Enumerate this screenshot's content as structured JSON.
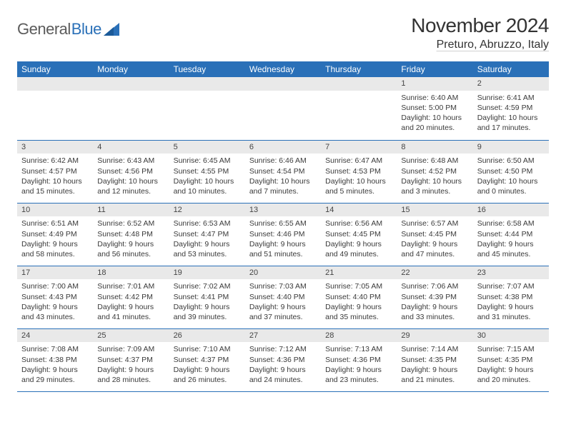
{
  "logo": {
    "text1": "General",
    "text2": "Blue"
  },
  "title": "November 2024",
  "location": "Preturo, Abruzzo, Italy",
  "day_headers": [
    "Sunday",
    "Monday",
    "Tuesday",
    "Wednesday",
    "Thursday",
    "Friday",
    "Saturday"
  ],
  "colors": {
    "header_bg": "#2a70b8",
    "header_text": "#ffffff",
    "daynum_bg": "#e9e9e9",
    "border": "#2a70b8",
    "body_text": "#3a3a3a",
    "logo_gray": "#5b5b5b",
    "logo_blue": "#2a70b8"
  },
  "weeks": [
    [
      {
        "blank": true
      },
      {
        "blank": true
      },
      {
        "blank": true
      },
      {
        "blank": true
      },
      {
        "blank": true
      },
      {
        "n": "1",
        "sunrise": "Sunrise: 6:40 AM",
        "sunset": "Sunset: 5:00 PM",
        "dl1": "Daylight: 10 hours",
        "dl2": "and 20 minutes."
      },
      {
        "n": "2",
        "sunrise": "Sunrise: 6:41 AM",
        "sunset": "Sunset: 4:59 PM",
        "dl1": "Daylight: 10 hours",
        "dl2": "and 17 minutes."
      }
    ],
    [
      {
        "n": "3",
        "sunrise": "Sunrise: 6:42 AM",
        "sunset": "Sunset: 4:57 PM",
        "dl1": "Daylight: 10 hours",
        "dl2": "and 15 minutes."
      },
      {
        "n": "4",
        "sunrise": "Sunrise: 6:43 AM",
        "sunset": "Sunset: 4:56 PM",
        "dl1": "Daylight: 10 hours",
        "dl2": "and 12 minutes."
      },
      {
        "n": "5",
        "sunrise": "Sunrise: 6:45 AM",
        "sunset": "Sunset: 4:55 PM",
        "dl1": "Daylight: 10 hours",
        "dl2": "and 10 minutes."
      },
      {
        "n": "6",
        "sunrise": "Sunrise: 6:46 AM",
        "sunset": "Sunset: 4:54 PM",
        "dl1": "Daylight: 10 hours",
        "dl2": "and 7 minutes."
      },
      {
        "n": "7",
        "sunrise": "Sunrise: 6:47 AM",
        "sunset": "Sunset: 4:53 PM",
        "dl1": "Daylight: 10 hours",
        "dl2": "and 5 minutes."
      },
      {
        "n": "8",
        "sunrise": "Sunrise: 6:48 AM",
        "sunset": "Sunset: 4:52 PM",
        "dl1": "Daylight: 10 hours",
        "dl2": "and 3 minutes."
      },
      {
        "n": "9",
        "sunrise": "Sunrise: 6:50 AM",
        "sunset": "Sunset: 4:50 PM",
        "dl1": "Daylight: 10 hours",
        "dl2": "and 0 minutes."
      }
    ],
    [
      {
        "n": "10",
        "sunrise": "Sunrise: 6:51 AM",
        "sunset": "Sunset: 4:49 PM",
        "dl1": "Daylight: 9 hours",
        "dl2": "and 58 minutes."
      },
      {
        "n": "11",
        "sunrise": "Sunrise: 6:52 AM",
        "sunset": "Sunset: 4:48 PM",
        "dl1": "Daylight: 9 hours",
        "dl2": "and 56 minutes."
      },
      {
        "n": "12",
        "sunrise": "Sunrise: 6:53 AM",
        "sunset": "Sunset: 4:47 PM",
        "dl1": "Daylight: 9 hours",
        "dl2": "and 53 minutes."
      },
      {
        "n": "13",
        "sunrise": "Sunrise: 6:55 AM",
        "sunset": "Sunset: 4:46 PM",
        "dl1": "Daylight: 9 hours",
        "dl2": "and 51 minutes."
      },
      {
        "n": "14",
        "sunrise": "Sunrise: 6:56 AM",
        "sunset": "Sunset: 4:45 PM",
        "dl1": "Daylight: 9 hours",
        "dl2": "and 49 minutes."
      },
      {
        "n": "15",
        "sunrise": "Sunrise: 6:57 AM",
        "sunset": "Sunset: 4:45 PM",
        "dl1": "Daylight: 9 hours",
        "dl2": "and 47 minutes."
      },
      {
        "n": "16",
        "sunrise": "Sunrise: 6:58 AM",
        "sunset": "Sunset: 4:44 PM",
        "dl1": "Daylight: 9 hours",
        "dl2": "and 45 minutes."
      }
    ],
    [
      {
        "n": "17",
        "sunrise": "Sunrise: 7:00 AM",
        "sunset": "Sunset: 4:43 PM",
        "dl1": "Daylight: 9 hours",
        "dl2": "and 43 minutes."
      },
      {
        "n": "18",
        "sunrise": "Sunrise: 7:01 AM",
        "sunset": "Sunset: 4:42 PM",
        "dl1": "Daylight: 9 hours",
        "dl2": "and 41 minutes."
      },
      {
        "n": "19",
        "sunrise": "Sunrise: 7:02 AM",
        "sunset": "Sunset: 4:41 PM",
        "dl1": "Daylight: 9 hours",
        "dl2": "and 39 minutes."
      },
      {
        "n": "20",
        "sunrise": "Sunrise: 7:03 AM",
        "sunset": "Sunset: 4:40 PM",
        "dl1": "Daylight: 9 hours",
        "dl2": "and 37 minutes."
      },
      {
        "n": "21",
        "sunrise": "Sunrise: 7:05 AM",
        "sunset": "Sunset: 4:40 PM",
        "dl1": "Daylight: 9 hours",
        "dl2": "and 35 minutes."
      },
      {
        "n": "22",
        "sunrise": "Sunrise: 7:06 AM",
        "sunset": "Sunset: 4:39 PM",
        "dl1": "Daylight: 9 hours",
        "dl2": "and 33 minutes."
      },
      {
        "n": "23",
        "sunrise": "Sunrise: 7:07 AM",
        "sunset": "Sunset: 4:38 PM",
        "dl1": "Daylight: 9 hours",
        "dl2": "and 31 minutes."
      }
    ],
    [
      {
        "n": "24",
        "sunrise": "Sunrise: 7:08 AM",
        "sunset": "Sunset: 4:38 PM",
        "dl1": "Daylight: 9 hours",
        "dl2": "and 29 minutes."
      },
      {
        "n": "25",
        "sunrise": "Sunrise: 7:09 AM",
        "sunset": "Sunset: 4:37 PM",
        "dl1": "Daylight: 9 hours",
        "dl2": "and 28 minutes."
      },
      {
        "n": "26",
        "sunrise": "Sunrise: 7:10 AM",
        "sunset": "Sunset: 4:37 PM",
        "dl1": "Daylight: 9 hours",
        "dl2": "and 26 minutes."
      },
      {
        "n": "27",
        "sunrise": "Sunrise: 7:12 AM",
        "sunset": "Sunset: 4:36 PM",
        "dl1": "Daylight: 9 hours",
        "dl2": "and 24 minutes."
      },
      {
        "n": "28",
        "sunrise": "Sunrise: 7:13 AM",
        "sunset": "Sunset: 4:36 PM",
        "dl1": "Daylight: 9 hours",
        "dl2": "and 23 minutes."
      },
      {
        "n": "29",
        "sunrise": "Sunrise: 7:14 AM",
        "sunset": "Sunset: 4:35 PM",
        "dl1": "Daylight: 9 hours",
        "dl2": "and 21 minutes."
      },
      {
        "n": "30",
        "sunrise": "Sunrise: 7:15 AM",
        "sunset": "Sunset: 4:35 PM",
        "dl1": "Daylight: 9 hours",
        "dl2": "and 20 minutes."
      }
    ]
  ]
}
